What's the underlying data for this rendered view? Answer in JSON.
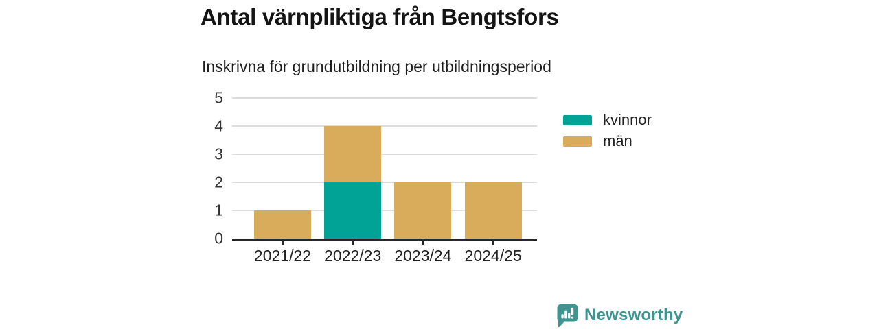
{
  "chart_data": {
    "type": "bar",
    "stacked": true,
    "title": "Antal värnpliktiga från Bengtsfors",
    "subtitle": "Inskrivna för grundutbildning per utbildningsperiod",
    "categories": [
      "2021/22",
      "2022/23",
      "2023/24",
      "2024/25"
    ],
    "series": [
      {
        "name": "kvinnor",
        "color": "#00a396",
        "values": [
          0,
          2,
          0,
          0
        ]
      },
      {
        "name": "män",
        "color": "#d9ac5b",
        "values": [
          1,
          2,
          2,
          2
        ]
      }
    ],
    "xlabel": "",
    "ylabel": "",
    "ylim": [
      0,
      5
    ],
    "yticks": [
      0,
      1,
      2,
      3,
      4,
      5
    ],
    "grid": "horizontal",
    "legend_position": "right"
  },
  "colors": {
    "background": "#ffffff",
    "gridline": "#dcdcdc",
    "axis": "#262626",
    "text": "#222222"
  },
  "branding": {
    "logo_text": "Newsworthy",
    "logo_color": "#3f948f",
    "logo_icon": "bar-chart-speech-bubble"
  }
}
